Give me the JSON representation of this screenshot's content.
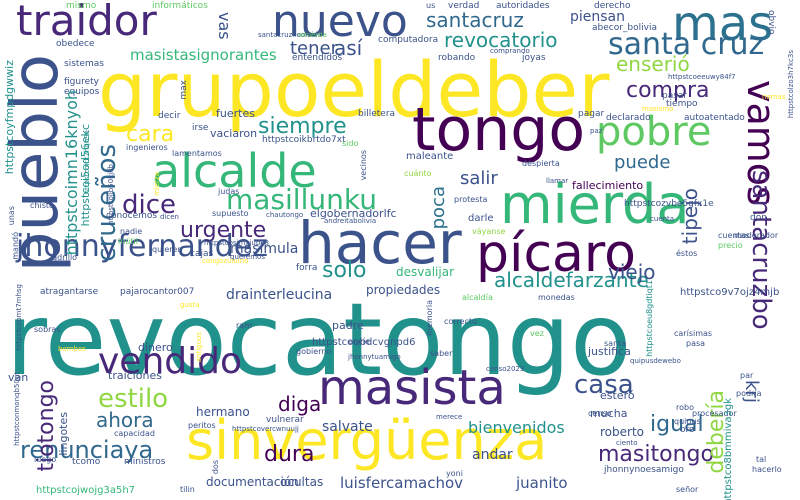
{
  "words": {
    "revocatongo": "revocatongo",
    "grupoeldeber": "grupoeldeber",
    "tongo": "tongo",
    "hacer": "hacer",
    "sinverguenza": "sinvergüenza",
    "mierda": "mierda",
    "picaro": "pícaro",
    "masista": "masista",
    "alcalde": "alcalde",
    "pueblo": "pueblo",
    "traidor": "traidor",
    "nuevo": "nuevo",
    "mas": "mas",
    "pobre": "pobre",
    "vamos": "vamos",
    "jhonnyfernandez": "jhonnyfernandez",
    "vendido": "vendido",
    "santacruz_spaced": "santa cruz",
    "santacruz": "santacruz",
    "revocatorio": "revocatorio",
    "masillunku": "masillunku",
    "crucenos": "cruceños",
    "renunciaya": "renunciaya",
    "dice": "dice",
    "santacruzbo": "santacruzbo",
    "estilo": "estilo",
    "casa": "casa",
    "alcaldefarzante": "alcaldefarzante",
    "siempre": "siempre",
    "compra": "compra",
    "cara": "cara",
    "masitongo": "masitongo",
    "ahora": "ahora",
    "tiotongo": "tiotongo",
    "deberia": "debería",
    "urgente": "urgente",
    "diga": "diga",
    "igual": "igual",
    "dura": "dura",
    "solo": "solo",
    "viejo": "viejo",
    "puede": "puede",
    "tener": "tener",
    "asi": "así",
    "ensenio": "enserió",
    "tipejo": "tipejo",
    "salir": "salir",
    "poca": "poca",
    "vas": "vas",
    "masistasignorantes": "masistasignorantes",
    "piensan": "piensan",
    "krj": "krj",
    "drainterleucina": "drainterleucina",
    "masimula": "masimula",
    "luisfercamachov": "luisfercamachov",
    "juanito": "juanito",
    "bienvenidos": "bienvenidos",
    "andar": "andar",
    "salvate": "salvate",
    "elgobernadorlfc": "elgobernadorlfc",
    "fallecimiento": "fallecimiento",
    "fuertes": "fuertes",
    "vaciaron": "vaciaron",
    "desvalijar": "desvalijar",
    "propiedades": "propiedades",
    "padre": "padre",
    "dinero": "dinero",
    "hermano": "hermano",
    "documentacion": "documentación",
    "ocultas": "ocultas",
    "roberto": "roberto",
    "mucha": "mucha",
    "estero": "esteró",
    "justifica": "justifica",
    "traiciones": "traiciones",
    "van": "van",
    "lingotes": "lingotes",
    "jhonnynoesamigo": "jhonnynoesamigo",
    "forra": "forra",
    "max": "max",
    "cajas": "cajas",
    "conocemos": "conocemos",
    "atragantarse": "atragantarse",
    "pajarocantor007": "pajarocantor007",
    "computadora": "computadora",
    "entendidos": "entendidos",
    "robando": "robando",
    "joyas": "joyas",
    "derecho": "derecho",
    "autoridades": "autoridades",
    "verdad": "verdad",
    "abecor_bolivia": "abecor_bolivia",
    "informaticos": "informáticos",
    "mismo": "mismo",
    "obedece": "obedece",
    "sistemas": "sistemas",
    "figurety": "figurety",
    "equipos": "equipos",
    "obvio": "obvio",
    "pasar": "pasar",
    "tiempo": "tiempo",
    "pagar": "pagar",
    "declarado": "declarado",
    "autoatentado": "autoatentado",
    "decir": "decir",
    "irse": "irse",
    "billetera": "billetera",
    "ingenieros": "ingenieros",
    "lamentamos": "lamentamos",
    "vecinos": "vecinos",
    "maleante": "maleante",
    "despierta": "despierta",
    "cuanto": "cuánto",
    "protesta": "protesta",
    "darle": "darle",
    "vayanse": "váyanse",
    "supuesto": "supuesto",
    "nadie": "nadie",
    "quieren": "quieren",
    "inutil": "inútil",
    "ladrillo": "ladrillo",
    "chiste": "chiste",
    "mando": "mandó",
    "unas": "unas",
    "don": "don",
    "cuentas": "cuentas",
    "precio": "precio",
    "estos": "éstos",
    "moderador": "moderador",
    "alcaldia": "alcaldía",
    "monedas": "monedas",
    "memoria": "memoria",
    "correcto": "correcto",
    "envie": "envíe",
    "vez": "vez",
    "sobras": "sobras",
    "ram": "ram",
    "gobierno": "gobierno",
    "saber": "saber",
    "santa": "santa",
    "pasa": "pasa",
    "carisimas": "carísimas",
    "par": "par",
    "procesador": "procesador",
    "censo": "censo",
    "robo": "robo",
    "oro": "oro",
    "quipus": "quipus",
    "podria": "podría",
    "capacidad": "capacidad",
    "peritos": "peritos",
    "vulnerar": "vulnerar",
    "tcomo": "tcomo",
    "ministros": "ministros",
    "luego": "luego",
    "tilin": "tilin",
    "yoni": "yoni",
    "dos": "dos",
    "hacerlo": "hacerlo",
    "tal": "tal",
    "senor": "señor",
    "judas": "judas",
    "sido": "sido",
    "httpstcoimn16knyoh": "httpstcoimn16knyoh",
    "httpstcoi5od56ekc": "httpstcoi5od56ekc",
    "httpstcoyfmpdgwwiz": "httpstcoyfmpdgwwiz",
    "httpstcoikbrtdo7xt": "httpstcoikbrtdo7xt",
    "httpstcozvbe5gfx1e": "httpstcozvbe5gfx1e",
    "httpstco9v7ojz4mjb": "httpstco9v7ojz4mjb",
    "httpstcoubdcvgnpd6": "httpstcoubdcvgnpd6",
    "httpstcojwojg3a5h7": "httpstcojwojg3a5h7",
    "httpstco8bmmiva3gk": "httpstco8bmmiva3gk",
    "httpstcoeu8gdtiqt1": "httpstcoeu8gdtiqt1",
    "httpstcoeeuwy84f7": "httpstcoeeuwy84f7",
    "httpstcolzo3h7kc3s": "httpstcolzo3h7kc3s",
    "httpstcoirk7hqn9e": "httpstcoirk7hqn9e",
    "httpstcoiib50kjlfb": "httpstcoiib50kjlfb",
    "httpstconmonqb50gt": "httpstconmonqb50gt",
    "httpstcovercwnuujj": "httpstcovercwnuujj",
    "httpstcobmt7mhsg": "httpstcobmt7mhsg",
    "httpstcosimxjuba8": "httpstcosimxjuba8",
    "santacruznoolvida": "santacruznoolvida",
    "jhonnytuamigo": "jhonnytuamigo",
    "quipusdewebo": "quipusdewebo",
    "chautongo": "chautongo",
    "andreitabolivia": "andreitabolivia",
    "congozuluino": "congozuluino",
    "queremos": "queremos",
    "gusta": "gusta",
    "mierza": "mierza",
    "merece": "merece",
    "emierda": "emierda",
    "censo2023": "censo2023",
    "antiguos": "antiguos",
    "llamar": "llamar",
    "nomas": "nomas",
    "masismo": "masismo",
    "engañar": "engañar",
    "comprando": "comprando",
    "bombos": "bombos",
    "paz": "paz",
    "dicen": "dicen",
    "cuenta": "cuenta",
    "ciento": "ciento",
    "us": "us"
  },
  "colors": {
    "c0": "#440154",
    "c1": "#3b528b",
    "c2": "#21918c",
    "c3": "#5ec962",
    "c4": "#fde725",
    "c5": "#2c728e",
    "c6": "#482878",
    "c7": "#35b779",
    "c8": "#90d743",
    "c9": "#31688e"
  }
}
